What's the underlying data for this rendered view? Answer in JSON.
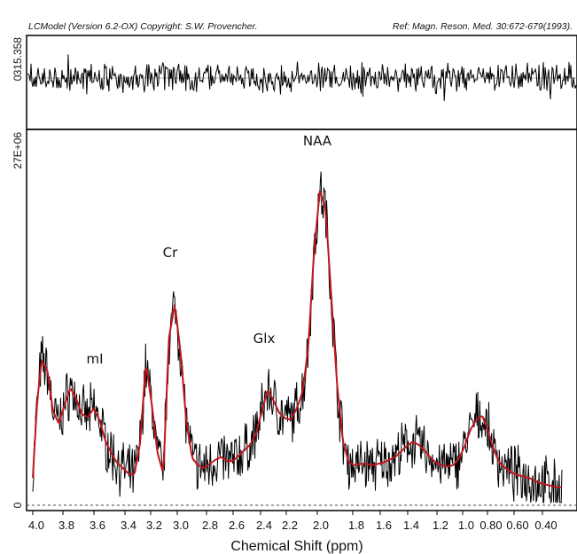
{
  "header": {
    "left": "LCModel (Version 6.2-OX) Copyright: S.W. Provencher.",
    "right": "Ref: Magn. Reson. Med. 30:672-679(1993)."
  },
  "chart_data": {
    "type": "line",
    "title": "",
    "xlabel": "Chemical Shift (ppm)",
    "ylabel": "",
    "x_reversed": true,
    "x_ticks": [
      "4.0",
      "3.8",
      "3.6",
      "3.4",
      "3.2",
      "3.0",
      "2.8",
      "2.6",
      "2.4",
      "2.2",
      "2.0",
      "1.8",
      "1.6",
      "1.4",
      "1.2",
      "1.0",
      "0.80",
      "0.60",
      "0.40"
    ],
    "residual_panel": {
      "y_top_label": "315.358",
      "y_zero_label": "0"
    },
    "spectrum_panel": {
      "y_top_label": "27E+06",
      "y_zero_label": "0",
      "ylim": [
        0,
        27
      ],
      "data_color": "#000000",
      "fit_color": "#c0151b",
      "fit_x": [
        4.0,
        3.97,
        3.94,
        3.9,
        3.86,
        3.82,
        3.78,
        3.74,
        3.7,
        3.66,
        3.62,
        3.58,
        3.54,
        3.5,
        3.46,
        3.42,
        3.38,
        3.34,
        3.3,
        3.26,
        3.22,
        3.18,
        3.14,
        3.1,
        3.06,
        3.02,
        2.98,
        2.94,
        2.9,
        2.86,
        2.82,
        2.78,
        2.74,
        2.7,
        2.66,
        2.62,
        2.58,
        2.54,
        2.5,
        2.46,
        2.42,
        2.38,
        2.34,
        2.3,
        2.26,
        2.22,
        2.18,
        2.14,
        2.1,
        2.06,
        2.02,
        1.98,
        1.94,
        1.9,
        1.86,
        1.82,
        1.78,
        1.74,
        1.7,
        1.66,
        1.62,
        1.58,
        1.54,
        1.5,
        1.46,
        1.42,
        1.38,
        1.34,
        1.3,
        1.26,
        1.22,
        1.18,
        1.14,
        1.1,
        1.06,
        1.02,
        0.98,
        0.94,
        0.9,
        0.86,
        0.82,
        0.78,
        0.74,
        0.7,
        0.66,
        0.62,
        0.58,
        0.54,
        0.5,
        0.46,
        0.42,
        0.38,
        0.35
      ],
      "fit_y": [
        2.0,
        7.5,
        10.5,
        9.8,
        6.8,
        5.9,
        7.3,
        8.5,
        7.7,
        6.6,
        6.4,
        7.0,
        6.2,
        4.7,
        3.8,
        3.1,
        2.7,
        2.3,
        2.2,
        4.5,
        10.3,
        7.4,
        3.8,
        2.3,
        12.2,
        14.6,
        11.0,
        6.0,
        3.4,
        2.9,
        2.7,
        3.0,
        3.3,
        3.5,
        3.2,
        3.2,
        3.6,
        4.0,
        4.4,
        5.2,
        6.8,
        8.4,
        7.6,
        6.7,
        6.3,
        6.2,
        7.0,
        8.2,
        11.4,
        18.4,
        22.8,
        21.5,
        15.0,
        8.6,
        4.6,
        3.1,
        2.9,
        3.0,
        3.0,
        2.9,
        3.0,
        3.1,
        3.3,
        3.5,
        3.9,
        4.3,
        4.6,
        4.4,
        4.0,
        3.5,
        3.1,
        2.9,
        2.8,
        2.9,
        3.4,
        4.3,
        5.5,
        6.2,
        6.5,
        5.4,
        4.0,
        3.1,
        2.7,
        2.4,
        2.2,
        2.1,
        2.0,
        1.8,
        1.6,
        1.5,
        1.4,
        1.3,
        1.3
      ]
    },
    "annotations": [
      {
        "label": "NAA",
        "x": 2.02
      },
      {
        "label": "Cr",
        "x": 3.04
      },
      {
        "label": "Glx",
        "x": 2.32
      },
      {
        "label": "mI",
        "x": 3.6
      }
    ]
  }
}
